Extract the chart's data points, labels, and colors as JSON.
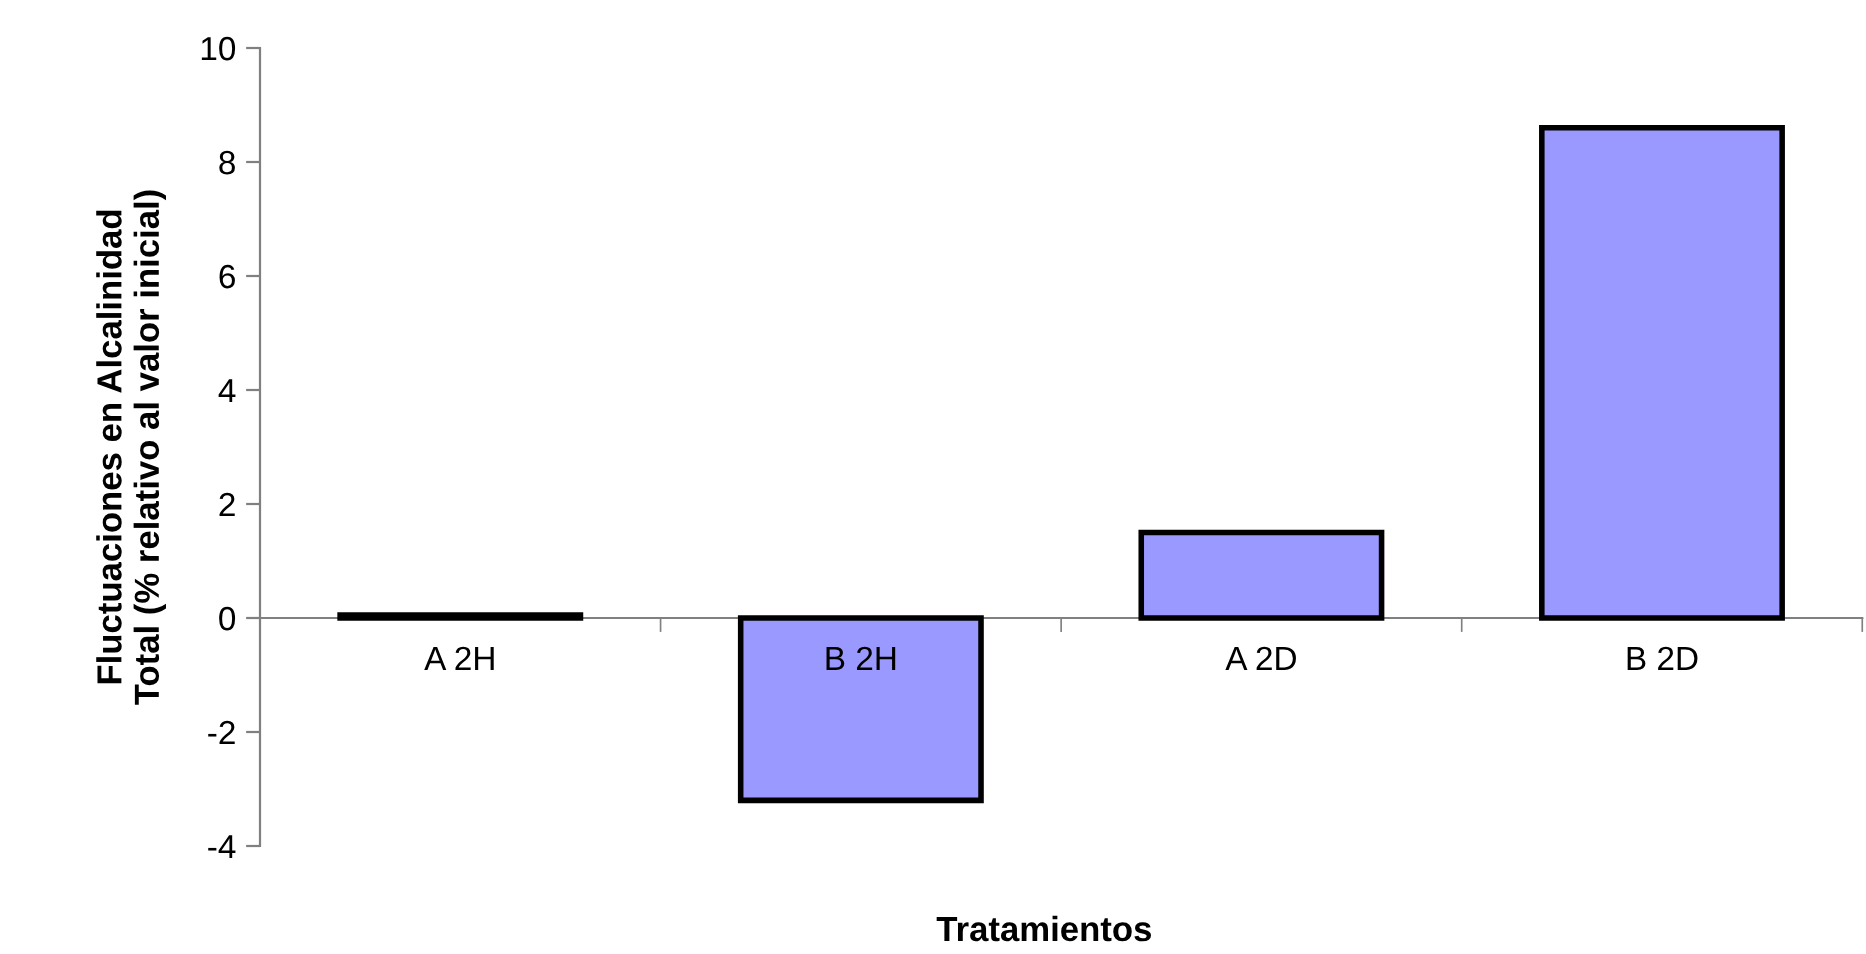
{
  "chart_data": {
    "type": "bar",
    "xlabel": "Tratamientos",
    "ylabel": "Fluctuaciones en Alcalinidad\nTotal (% relativo al valor inicial)",
    "categories": [
      "A 2H",
      "B 2H",
      "A 2D",
      "B 2D"
    ],
    "values": [
      0.05,
      -3.2,
      1.5,
      8.6
    ],
    "color": "#9999ff",
    "ylim": [
      -4,
      10
    ],
    "yticks": [
      -4,
      -2,
      0,
      2,
      4,
      6,
      8,
      10
    ],
    "grid": false
  }
}
